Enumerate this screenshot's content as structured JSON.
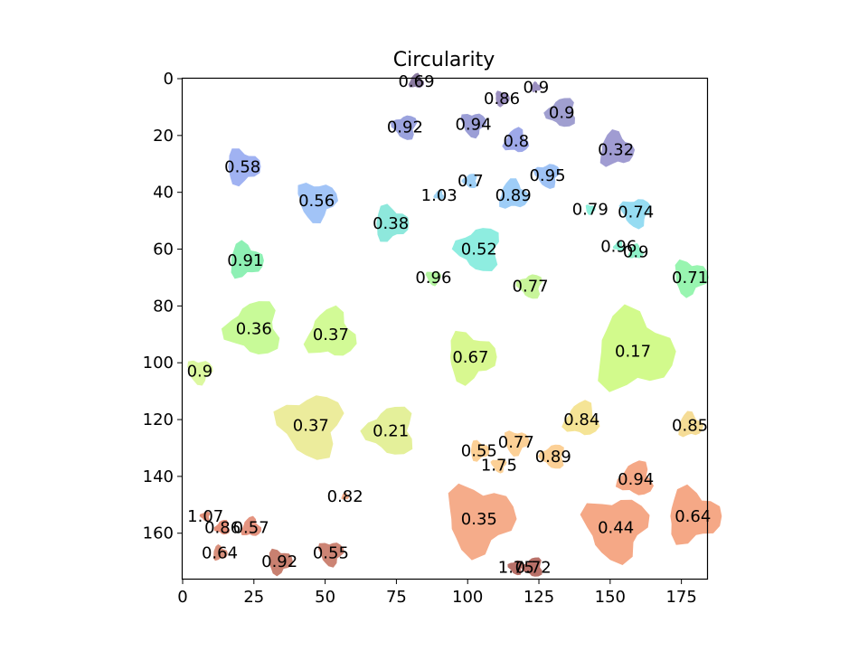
{
  "chart_data": {
    "type": "scatter",
    "title": "Circularity",
    "xlabel": "",
    "ylabel": "",
    "xlim": [
      0,
      184
    ],
    "ylim": [
      176,
      0
    ],
    "y_inverted": true,
    "grid": false,
    "x_ticks": [
      "0",
      "25",
      "50",
      "75",
      "100",
      "125",
      "150",
      "175"
    ],
    "y_ticks": [
      "0",
      "20",
      "40",
      "60",
      "80",
      "100",
      "120",
      "140",
      "160"
    ],
    "regions": [
      {
        "label": "0.69",
        "x": 82,
        "y": 1,
        "r": 3,
        "color": "#8a7aa0"
      },
      {
        "label": "0.9",
        "x": 124,
        "y": 3,
        "r": 2,
        "color": "#9b8fc0"
      },
      {
        "label": "0.86",
        "x": 112,
        "y": 7,
        "r": 3,
        "color": "#9b8fc0"
      },
      {
        "label": "0.94",
        "x": 102,
        "y": 16,
        "r": 5,
        "color": "#9b9ed6"
      },
      {
        "label": "0.92",
        "x": 78,
        "y": 17,
        "r": 5,
        "color": "#9ba3de"
      },
      {
        "label": "0.9",
        "x": 133,
        "y": 12,
        "r": 6,
        "color": "#a09fd0"
      },
      {
        "label": "0.8",
        "x": 117,
        "y": 22,
        "r": 5,
        "color": "#9ea8e8"
      },
      {
        "label": "0.32",
        "x": 152,
        "y": 25,
        "r": 7,
        "color": "#a09cd2"
      },
      {
        "label": "0.58",
        "x": 21,
        "y": 31,
        "r": 7,
        "color": "#a0b2f2"
      },
      {
        "label": "0.56",
        "x": 47,
        "y": 43,
        "r": 8,
        "color": "#a2c4f7"
      },
      {
        "label": "0.95",
        "x": 128,
        "y": 34,
        "r": 5,
        "color": "#9ec2f5"
      },
      {
        "label": "0.7",
        "x": 101,
        "y": 36,
        "r": 3,
        "color": "#9ed0f7"
      },
      {
        "label": "1.03",
        "x": 90,
        "y": 41,
        "r": 2,
        "color": "#9ed2f2"
      },
      {
        "label": "0.89",
        "x": 116,
        "y": 41,
        "r": 6,
        "color": "#9ecdf7"
      },
      {
        "label": "0.38",
        "x": 73,
        "y": 51,
        "r": 7,
        "color": "#8ee8dc"
      },
      {
        "label": "0.79",
        "x": 143,
        "y": 46,
        "r": 2,
        "color": "#8ef0dc"
      },
      {
        "label": "0.74",
        "x": 159,
        "y": 47,
        "r": 6,
        "color": "#96dcf2"
      },
      {
        "label": "0.52",
        "x": 104,
        "y": 60,
        "r": 9,
        "color": "#8eede0"
      },
      {
        "label": "0.96",
        "x": 153,
        "y": 59,
        "r": 2,
        "color": "#8ef0d4"
      },
      {
        "label": "0.9",
        "x": 159,
        "y": 61,
        "r": 3,
        "color": "#8ef0c8"
      },
      {
        "label": "0.91",
        "x": 22,
        "y": 64,
        "r": 7,
        "color": "#8ef0b4"
      },
      {
        "label": "0.71",
        "x": 178,
        "y": 70,
        "r": 7,
        "color": "#98f5b0"
      },
      {
        "label": "0.96",
        "x": 88,
        "y": 70,
        "r": 3,
        "color": "#b4f5a0"
      },
      {
        "label": "0.77",
        "x": 122,
        "y": 73,
        "r": 5,
        "color": "#c8f59a"
      },
      {
        "label": "0.36",
        "x": 25,
        "y": 88,
        "r": 11,
        "color": "#c8fa98"
      },
      {
        "label": "0.37",
        "x": 52,
        "y": 90,
        "r": 10,
        "color": "#d2fa96"
      },
      {
        "label": "0.17",
        "x": 158,
        "y": 96,
        "r": 16,
        "color": "#d2fa8c"
      },
      {
        "label": "0.67",
        "x": 101,
        "y": 98,
        "r": 10,
        "color": "#d8f890"
      },
      {
        "label": "0.9",
        "x": 6,
        "y": 103,
        "r": 5,
        "color": "#dcf8a0"
      },
      {
        "label": "0.37",
        "x": 45,
        "y": 122,
        "r": 13,
        "color": "#ecec9c"
      },
      {
        "label": "0.21",
        "x": 73,
        "y": 124,
        "r": 10,
        "color": "#e4f09a"
      },
      {
        "label": "0.84",
        "x": 140,
        "y": 120,
        "r": 7,
        "color": "#f5e496"
      },
      {
        "label": "0.85",
        "x": 178,
        "y": 122,
        "r": 5,
        "color": "#f5dc96"
      },
      {
        "label": "0.55",
        "x": 104,
        "y": 131,
        "r": 4,
        "color": "#fcd096"
      },
      {
        "label": "0.77",
        "x": 117,
        "y": 128,
        "r": 5,
        "color": "#fcd096"
      },
      {
        "label": "1.75",
        "x": 111,
        "y": 136,
        "r": 3,
        "color": "#fcd096"
      },
      {
        "label": "0.89",
        "x": 130,
        "y": 133,
        "r": 5,
        "color": "#fcd096"
      },
      {
        "label": "0.94",
        "x": 159,
        "y": 141,
        "r": 7,
        "color": "#f5a886"
      },
      {
        "label": "0.82",
        "x": 57,
        "y": 147,
        "r": 1.5,
        "color": "#f0a886"
      },
      {
        "label": "0.64",
        "x": 179,
        "y": 154,
        "r": 11,
        "color": "#f5a886"
      },
      {
        "label": "0.35",
        "x": 104,
        "y": 155,
        "r": 14,
        "color": "#f5ac8a"
      },
      {
        "label": "0.44",
        "x": 152,
        "y": 158,
        "r": 13,
        "color": "#f5a886"
      },
      {
        "label": "1.07",
        "x": 8,
        "y": 154,
        "r": 2,
        "color": "#e08e78"
      },
      {
        "label": "0.86",
        "x": 14,
        "y": 158,
        "r": 3,
        "color": "#e6907a"
      },
      {
        "label": "0.57",
        "x": 24,
        "y": 158,
        "r": 4,
        "color": "#e49480"
      },
      {
        "label": "0.64",
        "x": 13,
        "y": 167,
        "r": 3,
        "color": "#d8907c"
      },
      {
        "label": "0.92",
        "x": 34,
        "y": 170,
        "r": 5,
        "color": "#c88070"
      },
      {
        "label": "0.55",
        "x": 52,
        "y": 167,
        "r": 5,
        "color": "#cc8474"
      },
      {
        "label": "1.75",
        "x": 117,
        "y": 172,
        "r": 3,
        "color": "#b87068"
      },
      {
        "label": "0.72",
        "x": 123,
        "y": 172,
        "r": 4,
        "color": "#b87068"
      }
    ]
  }
}
